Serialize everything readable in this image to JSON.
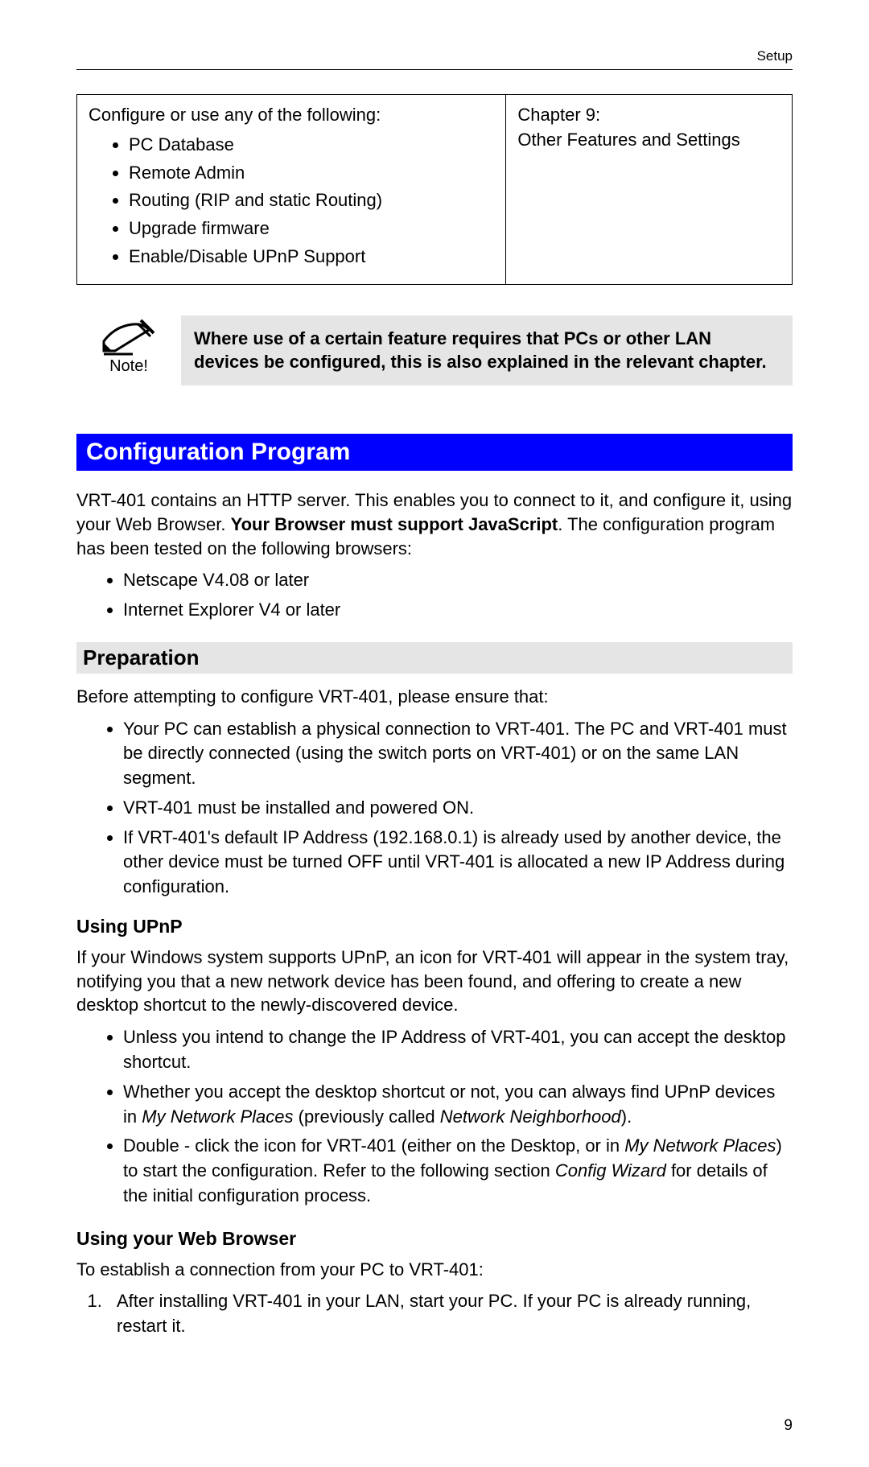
{
  "header": {
    "section": "Setup"
  },
  "top_table": {
    "left_intro": "Configure or use any of the following:",
    "left_items": [
      "PC Database",
      "Remote Admin",
      "Routing (RIP and static Routing)",
      "Upgrade firmware",
      "Enable/Disable UPnP Support"
    ],
    "right_text": "Chapter 9:\nOther Features and Settings"
  },
  "note": {
    "label": "Note!",
    "text": "Where use of a certain feature requires that PCs or other LAN devices be configured, this is also explained in the relevant chapter."
  },
  "blue_heading": "Configuration Program",
  "config_intro_pre": "VRT-401 contains an HTTP server. This enables you to connect to it, and configure it, using your Web Browser. ",
  "config_intro_bold": "Your Browser must support JavaScript",
  "config_intro_post": ". The configuration program has been tested on the following browsers:",
  "browsers": [
    "Netscape V4.08 or later",
    "Internet Explorer V4 or later"
  ],
  "preparation": {
    "heading": "Preparation",
    "intro": "Before attempting to configure VRT-401, please ensure that:",
    "items": [
      "Your PC can establish a physical connection to VRT-401. The PC and VRT-401 must be directly connected (using the switch ports on VRT-401) or on the same LAN segment.",
      "VRT-401 must be installed and powered ON.",
      "If VRT-401's default IP Address (192.168.0.1) is already used by another device, the other device must be turned OFF until VRT-401 is allocated a new IP Address during configuration."
    ]
  },
  "upnp": {
    "heading": "Using UPnP",
    "intro": "If your Windows system supports UPnP, an icon for VRT-401 will appear in the system tray, notifying you that a new network device has been found, and offering to create a new desktop shortcut to the newly-discovered device.",
    "items_html": [
      "Unless you intend to change the IP Address of VRT-401, you can accept the desktop shortcut.",
      "Whether you accept the desktop shortcut or not, you can always find UPnP devices in <span class=\"italic\">My Network Places</span> (previously called <span class=\"italic\">Network Neighborhood</span>).",
      "Double - click the icon for VRT-401 (either on the Desktop, or in <span class=\"italic\">My Network Places</span>) to start the configuration. Refer to the following section <span class=\"italic\">Config Wizard</span> for details of the initial configuration process."
    ]
  },
  "web_browser": {
    "heading": "Using your Web Browser",
    "intro": "To establish a connection from your PC to VRT-401:",
    "steps": [
      "After installing VRT-401 in your LAN, start your PC. If your PC is already running, restart it."
    ]
  },
  "page_number": "9",
  "colors": {
    "blue_bg": "#0000ff",
    "grey_bg": "#e5e5e5"
  }
}
